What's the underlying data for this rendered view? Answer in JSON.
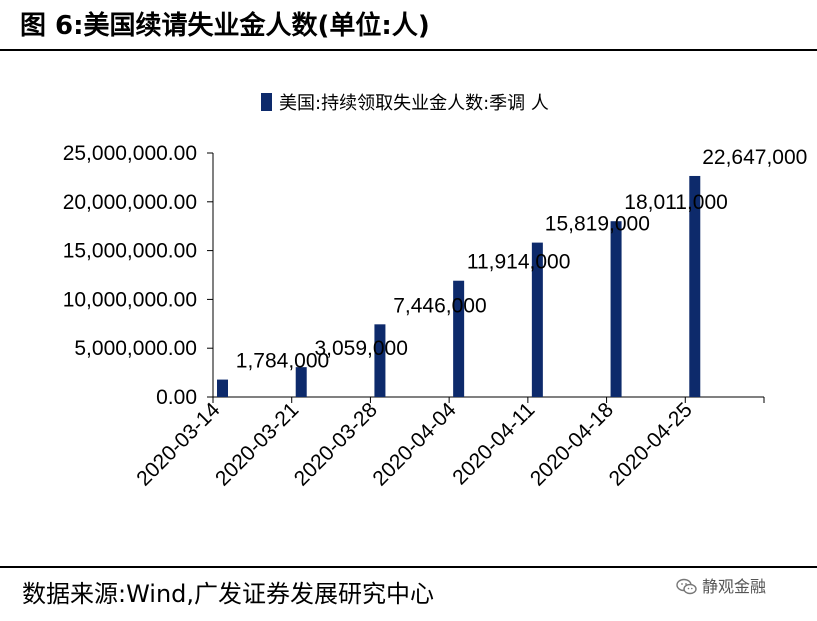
{
  "title": "图 6:美国续请失业金人数(单位:人)",
  "source": "数据来源:Wind,广发证券发展研究中心",
  "watermark": "静观金融",
  "colors": {
    "bar": "#0d2a6b",
    "text": "#000000",
    "rule": "#000000"
  },
  "chart_data": {
    "type": "bar",
    "categories": [
      "2020-03-14",
      "2020-03-21",
      "2020-03-28",
      "2020-04-04",
      "2020-04-11",
      "2020-04-18",
      "2020-04-25"
    ],
    "series": [
      {
        "name": "美国:持续领取失业金人数:季调 人",
        "values": [
          1784000,
          3059000,
          7446000,
          11914000,
          15819000,
          18011000,
          22647000
        ],
        "labels": [
          "1,784,000",
          "3,059,000",
          "7,446,000",
          "11,914,000",
          "15,819,000",
          "18,011,000",
          "22,647,000"
        ]
      }
    ],
    "ylim": [
      0,
      25000000
    ],
    "yticks": [
      0,
      5000000,
      10000000,
      15000000,
      20000000,
      25000000
    ],
    "ytick_labels": [
      "0.00",
      "5,000,000.00",
      "10,000,000.00",
      "15,000,000.00",
      "20,000,000.00",
      "25,000,000.00"
    ],
    "legend_position": "top",
    "grid": false
  }
}
